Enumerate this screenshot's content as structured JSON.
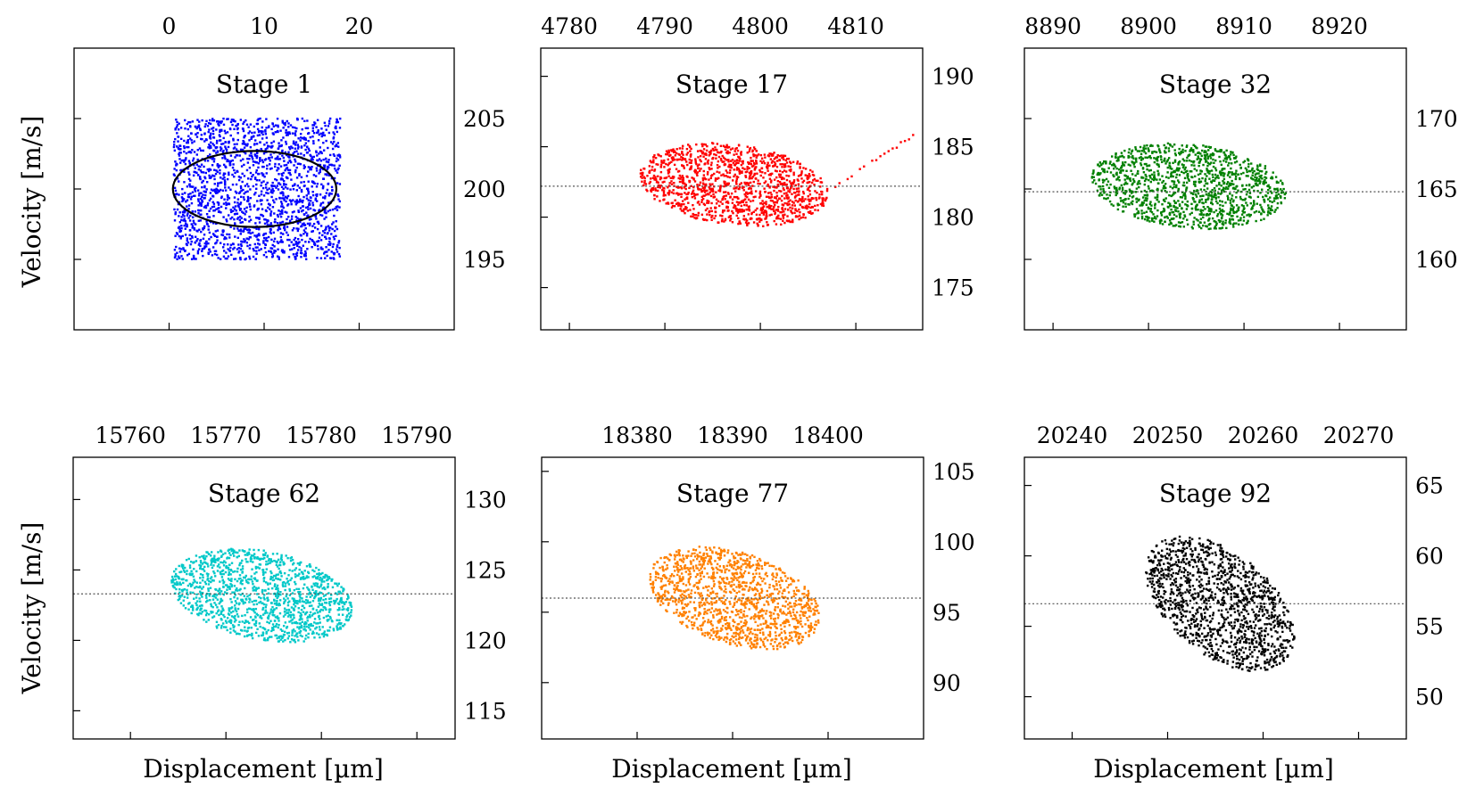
{
  "figure": {
    "ylabel": "Velocity [m/s]",
    "xlabel": "Displacement [µm]"
  },
  "chart_data": [
    {
      "type": "scatter",
      "title": "Stage 1",
      "color": "#0000ff",
      "xlim": [
        -10,
        30
      ],
      "ylim": [
        190,
        210
      ],
      "xticks": [
        0,
        10,
        20
      ],
      "yticks": [
        195,
        200,
        205
      ],
      "x_range": [
        0.5,
        18
      ],
      "y_center": 200.0,
      "shape": "uniform-rectangle",
      "y_half_height": 5.0,
      "ellipse": {
        "cx": 9,
        "cy": 200,
        "rx": 8.6,
        "ry": 2.7,
        "color": "#000000"
      },
      "reference_line": null,
      "n_points": 1900
    },
    {
      "type": "scatter",
      "title": "Stage 17",
      "color": "#ff0000",
      "xlim": [
        4777,
        4817
      ],
      "ylim": [
        172,
        192
      ],
      "xticks": [
        4780,
        4790,
        4800,
        4810
      ],
      "yticks": [
        175,
        180,
        185,
        190
      ],
      "x_range": [
        4787.5,
        4807
      ],
      "y_center": 182.3,
      "shape": "tilted-ellipse",
      "ellipse_rx": 9.9,
      "ellipse_ry": 2.9,
      "tilt": -0.22,
      "tail": {
        "x": [
          4807,
          4816
        ],
        "y": [
          181.8,
          185.8
        ]
      },
      "reference_line": 182.2,
      "n_points": 1300
    },
    {
      "type": "scatter",
      "title": "Stage 32",
      "color": "#008000",
      "xlim": [
        8887,
        8927
      ],
      "ylim": [
        155,
        175
      ],
      "xticks": [
        8890,
        8900,
        8910,
        8920
      ],
      "yticks": [
        160,
        165,
        170
      ],
      "x_range": [
        8893.5,
        8915
      ],
      "y_center": 165.2,
      "shape": "tilted-ellipse",
      "ellipse_rx": 10.2,
      "ellipse_ry": 3.0,
      "tilt": -0.18,
      "tail": null,
      "reference_line": 164.8,
      "n_points": 1300
    },
    {
      "type": "scatter",
      "title": "Stage 62",
      "color": "#00c8c8",
      "xlim": [
        15754,
        15794
      ],
      "ylim": [
        113,
        133
      ],
      "xticks": [
        15760,
        15770,
        15780,
        15790
      ],
      "yticks": [
        115,
        120,
        125,
        130
      ],
      "x_range": [
        15764.5,
        15783
      ],
      "y_center": 123.2,
      "shape": "tilted-ellipse",
      "ellipse_rx": 9.5,
      "ellipse_ry": 3.2,
      "tilt": -0.3,
      "tail": null,
      "reference_line": 123.3,
      "n_points": 1300
    },
    {
      "type": "scatter",
      "title": "Stage 77",
      "color": "#ff8000",
      "xlim": [
        18370,
        18410
      ],
      "ylim": [
        86,
        106
      ],
      "xticks": [
        18380,
        18390,
        18400
      ],
      "yticks": [
        90,
        95,
        100,
        105
      ],
      "x_range": [
        18381.5,
        18399
      ],
      "y_center": 96.0,
      "shape": "tilted-ellipse",
      "ellipse_rx": 9.0,
      "ellipse_ry": 3.4,
      "tilt": -0.4,
      "tail": null,
      "reference_line": 96.0,
      "n_points": 1300
    },
    {
      "type": "scatter",
      "title": "Stage 92",
      "color": "#000000",
      "xlim": [
        20235,
        20275
      ],
      "ylim": [
        47,
        67
      ],
      "xticks": [
        20240,
        20250,
        20260,
        20270
      ],
      "yticks": [
        50,
        55,
        60,
        65
      ],
      "x_range": [
        20248,
        20263
      ],
      "y_center": 56.6,
      "shape": "tilted-ellipse",
      "ellipse_rx": 7.8,
      "ellipse_ry": 4.2,
      "tilt": -0.55,
      "tail": null,
      "reference_line": 56.6,
      "n_points": 1300
    }
  ]
}
